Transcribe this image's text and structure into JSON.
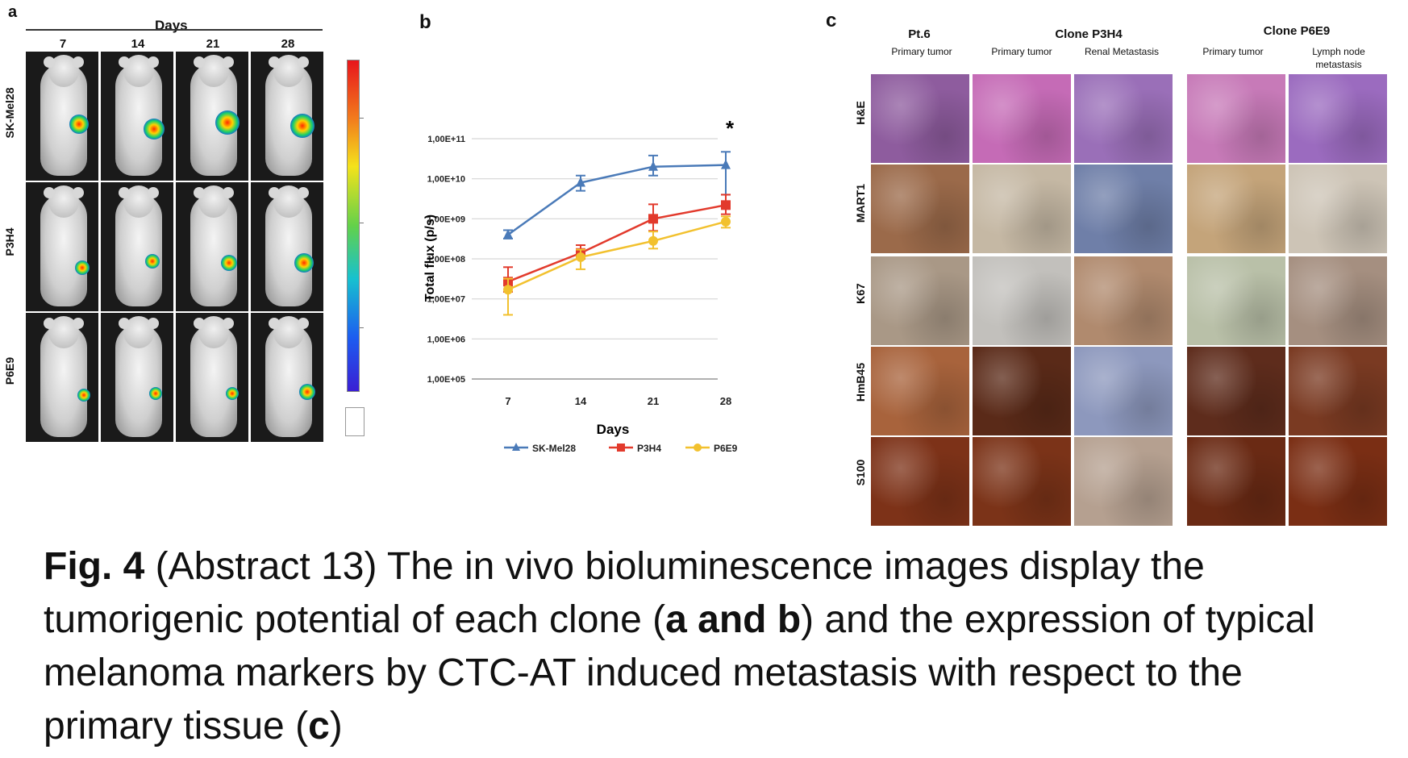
{
  "panel_labels": {
    "a": "a",
    "b": "b",
    "c": "c"
  },
  "panel_a": {
    "header": "Days",
    "days": [
      "7",
      "14",
      "21",
      "28"
    ],
    "rows": [
      "SK-Mel28",
      "P3H4",
      "P6E9"
    ]
  },
  "chart_data": {
    "type": "line",
    "title": "",
    "xlabel": "Days",
    "ylabel": "Total flux (p/s)",
    "categories": [
      "7",
      "14",
      "21",
      "28"
    ],
    "y_scale": "log10",
    "ylim": [
      100000,
      100000000000
    ],
    "y_tick_labels": [
      "1,00E+05",
      "1,00E+06",
      "1,00E+07",
      "1,00E+08",
      "1,00E+09",
      "1,00E+10",
      "1,00E+11"
    ],
    "annotation": "*",
    "series": [
      {
        "name": "SK-Mel28",
        "color": "#4a7ab8",
        "marker": "triangle",
        "values": [
          400000000,
          8000000000,
          20000000000,
          22000000000
        ],
        "err_up": [
          120000000,
          4000000000,
          18000000000,
          25000000000
        ],
        "err_down": [
          80000000,
          3000000000,
          8000000000,
          18000000000
        ]
      },
      {
        "name": "P3H4",
        "color": "#e23a2c",
        "marker": "square",
        "values": [
          27000000,
          140000000,
          1000000000,
          2200000000
        ],
        "err_up": [
          35000000,
          80000000,
          1300000000,
          1800000000
        ],
        "err_down": [
          12000000,
          40000000,
          500000000,
          900000000
        ]
      },
      {
        "name": "P6E9",
        "color": "#f2c12e",
        "marker": "circle",
        "values": [
          17000000,
          110000000,
          280000000,
          850000000
        ],
        "err_up": [
          15000000,
          60000000,
          200000000,
          300000000
        ],
        "err_down": [
          13000000,
          55000000,
          100000000,
          250000000
        ]
      }
    ]
  },
  "panel_c": {
    "groups": [
      {
        "title": "Pt.6",
        "cols": [
          "Primary tumor"
        ]
      },
      {
        "title": "Clone P3H4",
        "cols": [
          "Primary tumor",
          "Renal Metastasis"
        ]
      },
      {
        "title": "Clone P6E9",
        "cols": [
          "Primary tumor",
          "Lymph node metastasis"
        ]
      }
    ],
    "rows": [
      "H&E",
      "MART1",
      "K67",
      "HmB45",
      "S100"
    ],
    "tile_colors": [
      [
        "#8e5c9e",
        "#c56bb6",
        "#9a6fb8",
        "#c77ab8",
        "#9b6bbf"
      ],
      [
        "#9b6a4a",
        "#c5b8a4",
        "#6f7fa8",
        "#c4a47a",
        "#cdc4b6"
      ],
      [
        "#a99886",
        "#c2c0bc",
        "#b08a6e",
        "#b9c0a8",
        "#a58f80"
      ],
      [
        "#a8633c",
        "#5a2a18",
        "#8d98bd",
        "#5e2c1c",
        "#7a3a22"
      ],
      [
        "#7d3218",
        "#7b3318",
        "#b5a090",
        "#6a2a14",
        "#7a2e14"
      ]
    ]
  },
  "caption": {
    "fig": "Fig. 4",
    "part1": " (Abstract 13) The in vivo bioluminescence images display the tumorigenic potential of each clone (",
    "ab": "a and b",
    "part2": ") and the expression of typical melanoma markers by CTC-AT induced metastasis with respect to the primary tissue (",
    "c": "c",
    "part3": ")"
  }
}
